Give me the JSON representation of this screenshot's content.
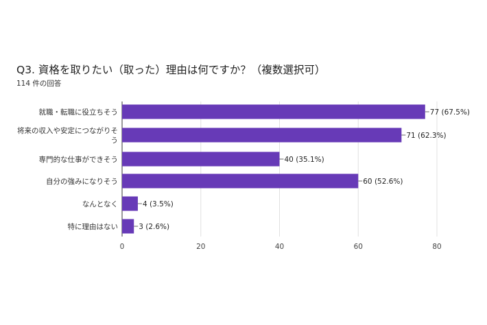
{
  "chart_data": {
    "type": "bar",
    "orientation": "horizontal",
    "title": "Q3. 資格を取りたい（取った）理由は何ですか？（複数選択可）",
    "subtitle": "114 件の回答",
    "categories": [
      [
        "就職・転職に役立ちそう"
      ],
      [
        "将来の収入や安定につながりそ",
        "う"
      ],
      [
        "専門的な仕事ができそう"
      ],
      [
        "自分の強みになりそう"
      ],
      [
        "なんとなく"
      ],
      [
        "特に理由はない"
      ]
    ],
    "values": [
      77,
      71,
      40,
      60,
      4,
      3
    ],
    "data_labels": [
      "77 (67.5%)",
      "71 (62.3%)",
      "40 (35.1%)",
      "60 (52.6%)",
      "4 (3.5%)",
      "3 (2.6%)"
    ],
    "xticks": [
      "0",
      "20",
      "40",
      "60",
      "80"
    ],
    "xtick_values": [
      0,
      20,
      40,
      60,
      80
    ],
    "xlim": [
      0,
      80
    ],
    "grid": true,
    "bar_color": "#673ab7"
  }
}
